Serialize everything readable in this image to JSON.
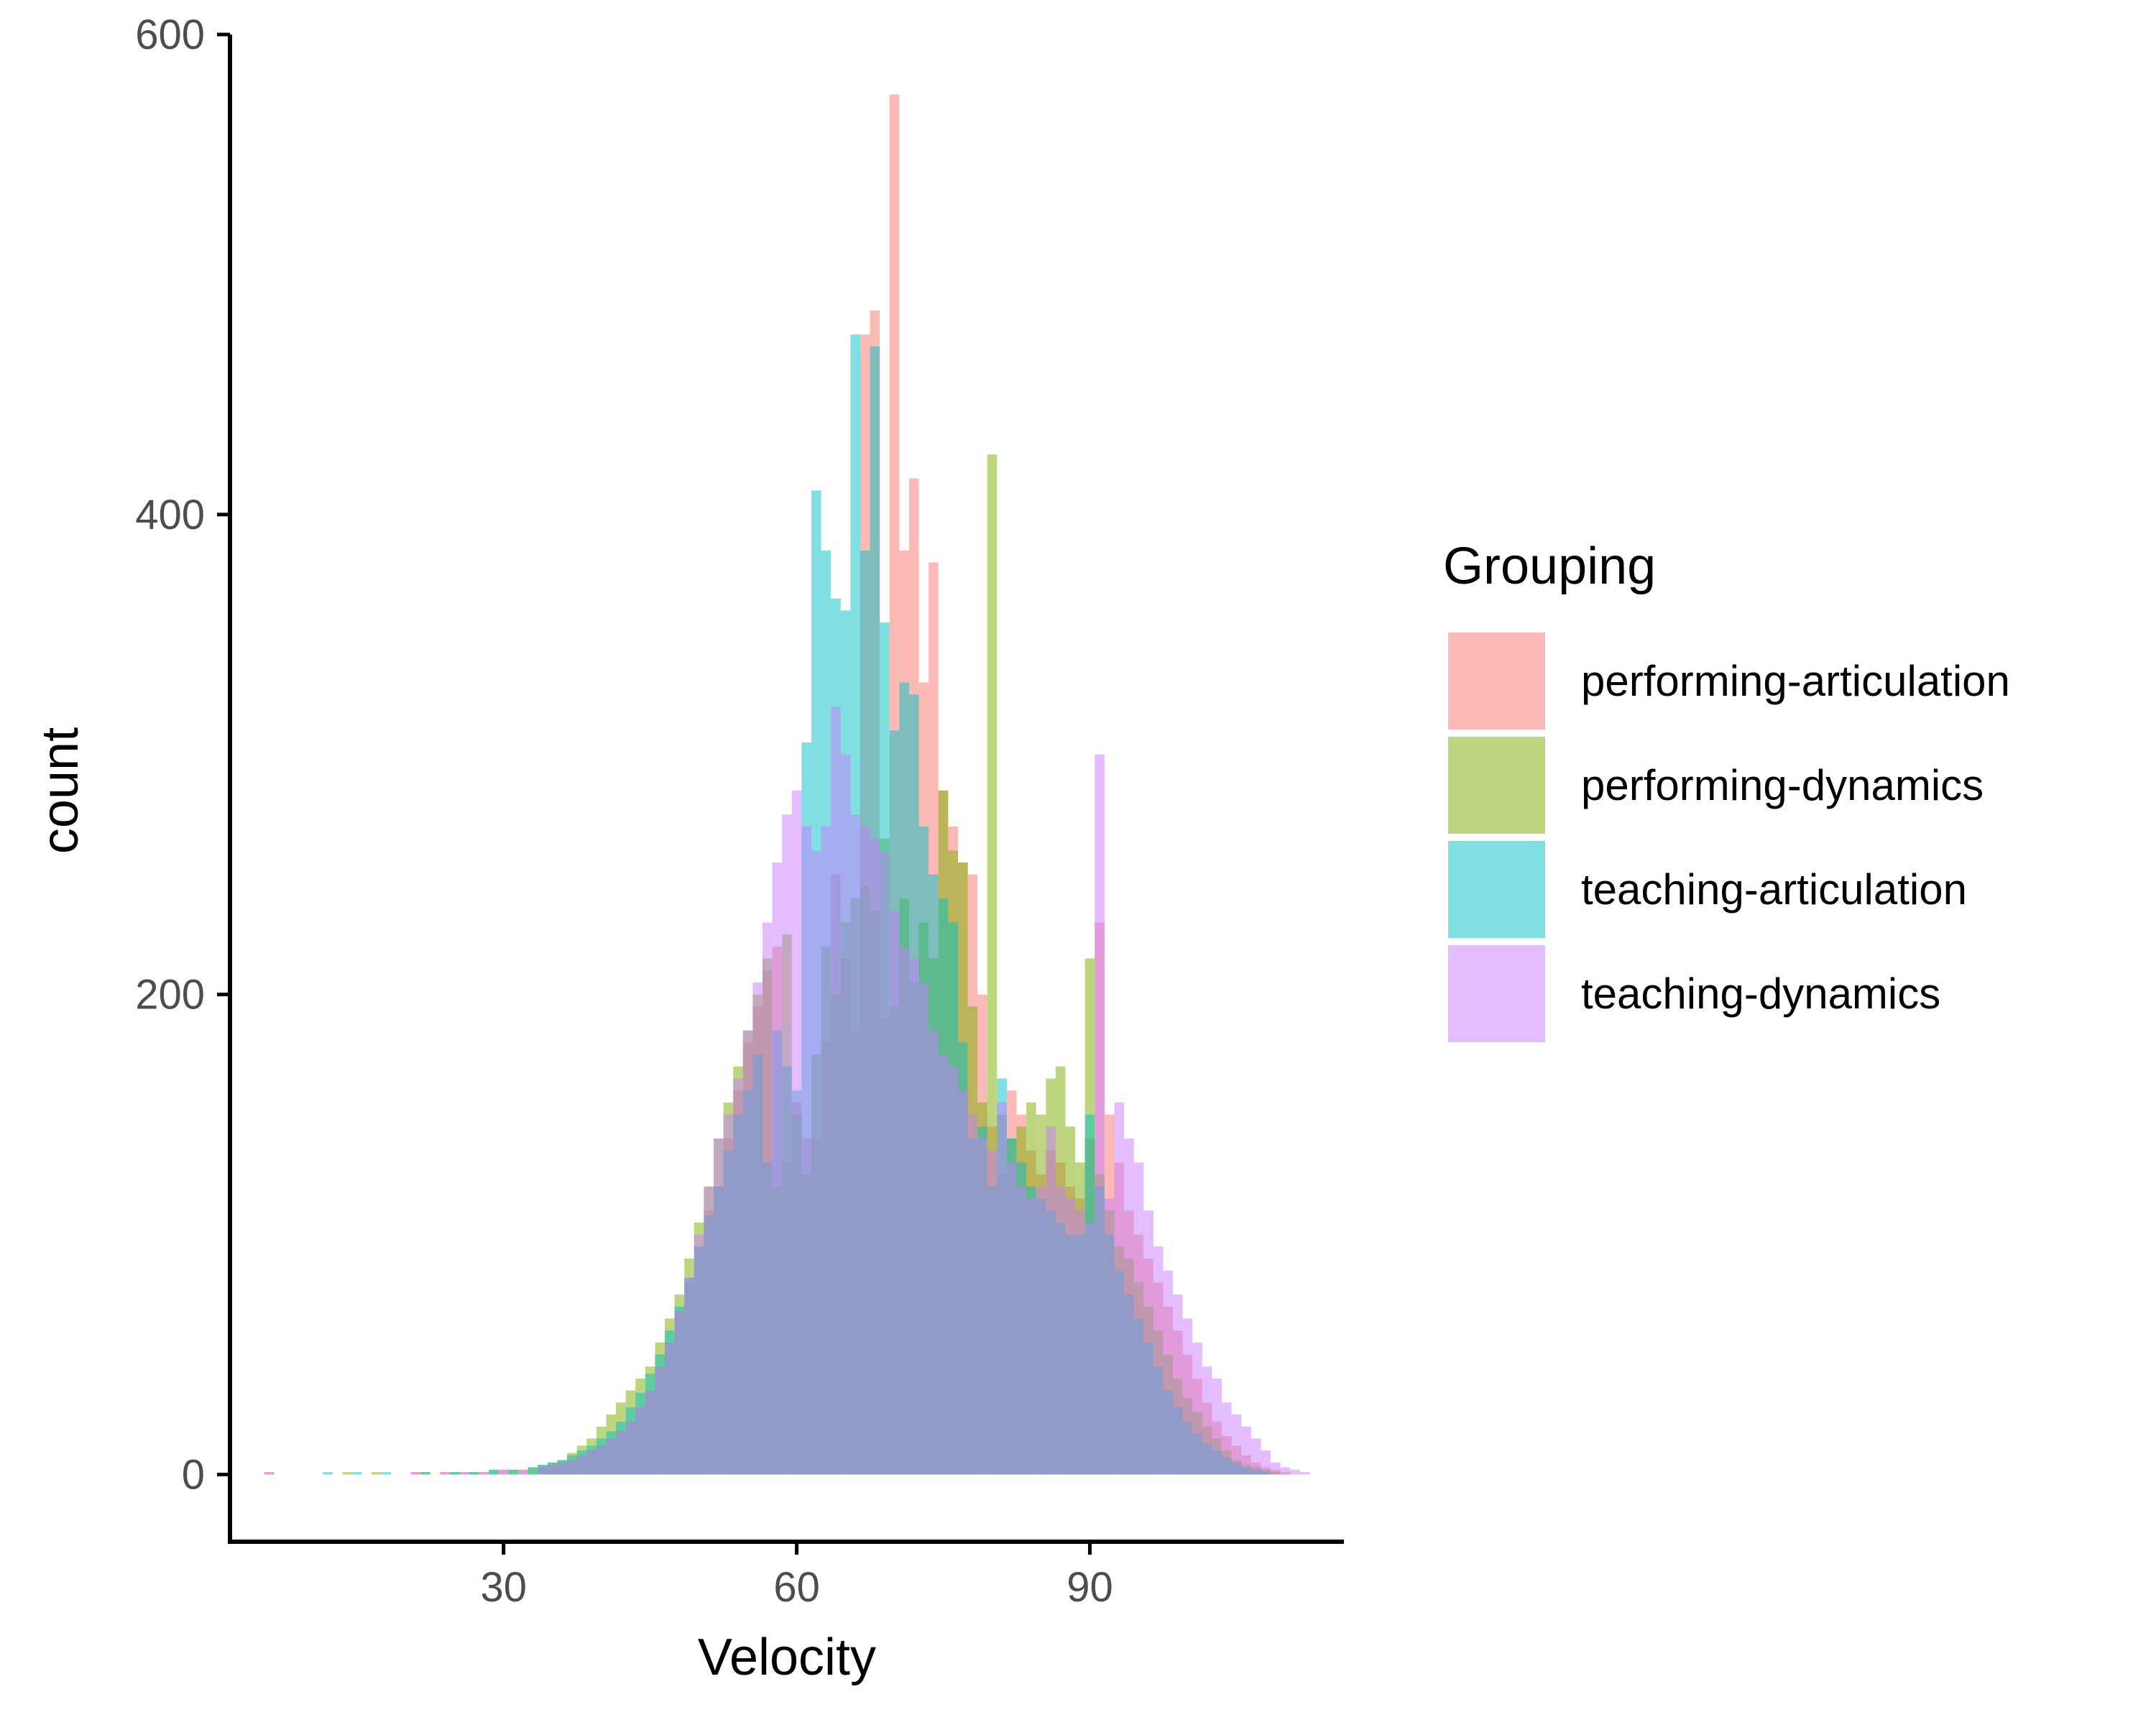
{
  "chart_data": {
    "type": "bar",
    "subtype": "overlaid-histogram",
    "x_title": "Velocity",
    "y_title": "count",
    "xlim": [
      2,
      116
    ],
    "ylim": [
      -28,
      600
    ],
    "x_ticks": [
      30,
      60,
      90
    ],
    "y_ticks": [
      0,
      200,
      400,
      600
    ],
    "bin_width": 1,
    "bar_opacity": 0.5,
    "grid": false,
    "legend": {
      "title": "Grouping",
      "position": "right"
    },
    "series": [
      {
        "name": "performing-articulation",
        "color": "#F8766D",
        "x": [
          6,
          21,
          24,
          26,
          28,
          30,
          32,
          34,
          35,
          36,
          37,
          38,
          39,
          40,
          41,
          42,
          43,
          44,
          45,
          46,
          47,
          48,
          49,
          50,
          51,
          52,
          53,
          54,
          55,
          56,
          57,
          58,
          59,
          60,
          61,
          62,
          63,
          64,
          65,
          66,
          67,
          68,
          69,
          70,
          71,
          72,
          73,
          74,
          75,
          76,
          77,
          78,
          79,
          80,
          81,
          82,
          83,
          84,
          85,
          86,
          87,
          88,
          89,
          90,
          91,
          92,
          93,
          94,
          95,
          96,
          97,
          98,
          99,
          100,
          101,
          102,
          103,
          104,
          105,
          106,
          107,
          108,
          109,
          110
        ],
        "values": [
          1,
          1,
          1,
          1,
          1,
          2,
          2,
          3,
          4,
          5,
          6,
          8,
          10,
          12,
          15,
          18,
          22,
          28,
          35,
          45,
          55,
          68,
          80,
          95,
          110,
          120,
          140,
          160,
          180,
          195,
          210,
          220,
          130,
          155,
          140,
          140,
          180,
          250,
          215,
          185,
          475,
          485,
          190,
          575,
          385,
          415,
          330,
          380,
          285,
          270,
          255,
          250,
          200,
          145,
          125,
          160,
          150,
          135,
          125,
          135,
          130,
          120,
          115,
          140,
          230,
          150,
          130,
          110,
          100,
          90,
          80,
          70,
          60,
          50,
          40,
          30,
          22,
          16,
          12,
          8,
          5,
          3,
          2,
          1
        ]
      },
      {
        "name": "performing-dynamics",
        "color": "#7CAE00",
        "x": [
          14,
          17,
          22,
          25,
          27,
          29,
          31,
          33,
          34,
          35,
          36,
          37,
          38,
          39,
          40,
          41,
          42,
          43,
          44,
          45,
          46,
          47,
          48,
          49,
          50,
          51,
          52,
          53,
          54,
          55,
          56,
          57,
          58,
          59,
          60,
          61,
          62,
          63,
          64,
          65,
          66,
          67,
          68,
          69,
          70,
          71,
          72,
          73,
          74,
          75,
          76,
          77,
          78,
          79,
          80,
          81,
          82,
          83,
          84,
          85,
          86,
          87,
          88,
          89,
          90,
          91,
          92,
          93,
          94,
          95,
          96,
          97,
          98,
          99,
          100,
          101,
          102,
          103,
          104,
          105,
          106,
          107,
          108,
          109
        ],
        "values": [
          1,
          1,
          1,
          1,
          1,
          2,
          2,
          3,
          4,
          5,
          6,
          9,
          12,
          15,
          20,
          25,
          30,
          35,
          40,
          45,
          55,
          65,
          75,
          90,
          105,
          120,
          140,
          155,
          170,
          185,
          200,
          215,
          120,
          225,
          150,
          125,
          175,
          220,
          200,
          230,
          240,
          245,
          235,
          265,
          195,
          240,
          205,
          230,
          215,
          285,
          260,
          255,
          195,
          155,
          425,
          150,
          140,
          145,
          155,
          150,
          165,
          170,
          145,
          130,
          215,
          125,
          110,
          95,
          90,
          80,
          70,
          60,
          50,
          40,
          32,
          26,
          20,
          15,
          10,
          6,
          4,
          3,
          2,
          1
        ]
      },
      {
        "name": "teaching-articulation",
        "color": "#00BFC4",
        "x": [
          12,
          15,
          18,
          22,
          25,
          27,
          29,
          31,
          33,
          34,
          35,
          36,
          37,
          38,
          39,
          40,
          41,
          42,
          43,
          44,
          45,
          46,
          47,
          48,
          49,
          50,
          51,
          52,
          53,
          54,
          55,
          56,
          57,
          58,
          59,
          60,
          61,
          62,
          63,
          64,
          65,
          66,
          67,
          68,
          69,
          70,
          71,
          72,
          73,
          74,
          75,
          76,
          77,
          78,
          79,
          80,
          81,
          82,
          83,
          84,
          85,
          86,
          87,
          88,
          89,
          90,
          91,
          92,
          93,
          94,
          95,
          96,
          97,
          98,
          99,
          100,
          101,
          102,
          103,
          104,
          105,
          106,
          107,
          108
        ],
        "values": [
          1,
          1,
          1,
          1,
          1,
          1,
          2,
          2,
          3,
          4,
          5,
          6,
          8,
          10,
          12,
          15,
          18,
          22,
          28,
          34,
          42,
          50,
          60,
          70,
          82,
          95,
          108,
          120,
          135,
          150,
          160,
          175,
          130,
          185,
          170,
          160,
          305,
          410,
          385,
          365,
          360,
          475,
          385,
          470,
          355,
          310,
          330,
          325,
          270,
          250,
          240,
          230,
          180,
          140,
          145,
          120,
          165,
          140,
          130,
          120,
          115,
          110,
          105,
          100,
          100,
          150,
          120,
          100,
          85,
          75,
          65,
          55,
          45,
          35,
          28,
          22,
          17,
          13,
          10,
          7,
          5,
          3,
          2,
          1
        ]
      },
      {
        "name": "teaching-dynamics",
        "color": "#C77CFF",
        "x": [
          6,
          21,
          24,
          26,
          28,
          30,
          32,
          34,
          35,
          36,
          37,
          38,
          39,
          40,
          41,
          42,
          43,
          44,
          45,
          46,
          47,
          48,
          49,
          50,
          51,
          52,
          53,
          54,
          55,
          56,
          57,
          58,
          59,
          60,
          61,
          62,
          63,
          64,
          65,
          66,
          67,
          68,
          69,
          70,
          71,
          72,
          73,
          74,
          75,
          76,
          77,
          78,
          79,
          80,
          81,
          82,
          83,
          84,
          85,
          86,
          87,
          88,
          89,
          90,
          91,
          92,
          93,
          94,
          95,
          96,
          97,
          98,
          99,
          100,
          101,
          102,
          103,
          104,
          105,
          106,
          107,
          108,
          109,
          110,
          111,
          112
        ],
        "values": [
          1,
          1,
          1,
          1,
          1,
          2,
          2,
          3,
          4,
          5,
          6,
          8,
          10,
          12,
          15,
          18,
          22,
          28,
          35,
          45,
          55,
          68,
          82,
          100,
          120,
          140,
          150,
          165,
          185,
          205,
          230,
          255,
          275,
          285,
          270,
          260,
          270,
          320,
          300,
          275,
          270,
          265,
          260,
          235,
          220,
          215,
          205,
          185,
          175,
          170,
          160,
          150,
          140,
          135,
          155,
          130,
          120,
          115,
          120,
          145,
          120,
          115,
          110,
          105,
          300,
          115,
          155,
          140,
          130,
          110,
          95,
          85,
          75,
          65,
          55,
          45,
          40,
          30,
          25,
          20,
          15,
          10,
          5,
          3,
          2,
          1
        ]
      }
    ]
  }
}
